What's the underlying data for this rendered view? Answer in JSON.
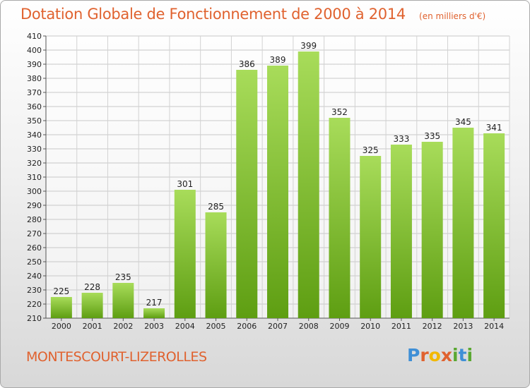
{
  "title": "Dotation Globale de Fonctionnement de 2000 à 2014",
  "unit": "(en milliers d'€)",
  "commune": "MONTESCOURT-LIZEROLLES",
  "brand": {
    "letters": [
      "P",
      "r",
      "o",
      "x",
      "i",
      "t",
      "i"
    ],
    "colors": [
      "#3f8fd6",
      "#e0622f",
      "#f2b800",
      "#e0622f",
      "#5aa832",
      "#3f8fd6",
      "#5aa832"
    ]
  },
  "colors": {
    "bar_top": "#a8dc5a",
    "bar_bottom": "#5e9e12",
    "title": "#e0622f"
  },
  "chart_data": {
    "type": "bar",
    "title": "Dotation Globale de Fonctionnement de 2000 à 2014",
    "xlabel": "",
    "ylabel": "",
    "categories": [
      "2000",
      "2001",
      "2002",
      "2003",
      "2004",
      "2005",
      "2006",
      "2007",
      "2008",
      "2009",
      "2010",
      "2011",
      "2012",
      "2013",
      "2014"
    ],
    "values": [
      225,
      228,
      235,
      217,
      301,
      285,
      386,
      389,
      399,
      352,
      325,
      333,
      335,
      345,
      341
    ],
    "ylim": [
      210,
      410
    ],
    "yticks": [
      210,
      220,
      230,
      240,
      250,
      260,
      270,
      280,
      290,
      300,
      310,
      320,
      330,
      340,
      350,
      360,
      370,
      380,
      390,
      400,
      410
    ],
    "grid": true
  }
}
